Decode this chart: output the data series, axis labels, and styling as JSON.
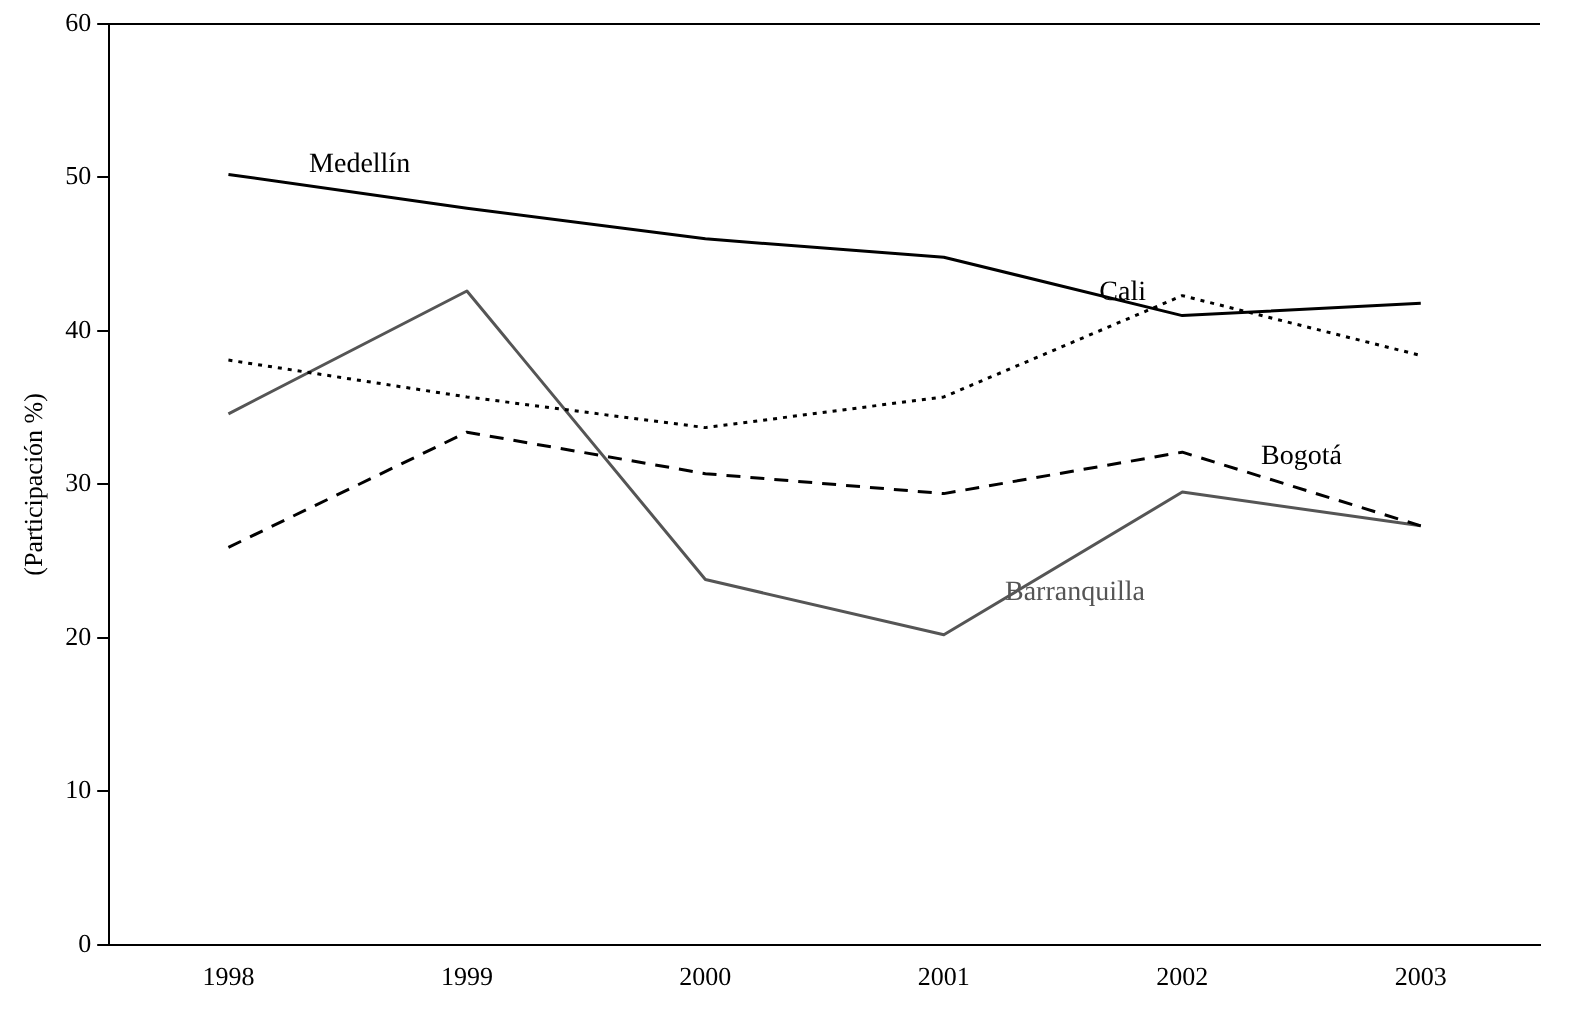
{
  "chart_data": {
    "type": "line",
    "ylabel": "(Participación %)",
    "categories": [
      "1998",
      "1999",
      "2000",
      "2001",
      "2002",
      "2003"
    ],
    "series": [
      {
        "name": "Medellín",
        "color": "#000000",
        "line_style": "solid",
        "values": [
          50.2,
          48,
          46,
          44.8,
          41,
          41.8
        ]
      },
      {
        "name": "Cali",
        "color": "#000000",
        "line_style": "dotted",
        "values": [
          38.1,
          35.7,
          33.7,
          35.7,
          42.3,
          38.4
        ]
      },
      {
        "name": "Bogotá",
        "color": "#000000",
        "line_style": "dashed",
        "values": [
          25.9,
          33.4,
          30.7,
          29.4,
          32.1,
          27.3
        ]
      },
      {
        "name": "Barranquilla",
        "color": "#555555",
        "line_style": "solid",
        "values": [
          34.6,
          42.6,
          23.8,
          20.2,
          29.5,
          27.3
        ]
      }
    ],
    "ylim": [
      0,
      60
    ],
    "yticks": [
      0,
      10,
      20,
      30,
      40,
      50,
      60
    ],
    "grid": false,
    "legend": false,
    "marker": "none"
  }
}
